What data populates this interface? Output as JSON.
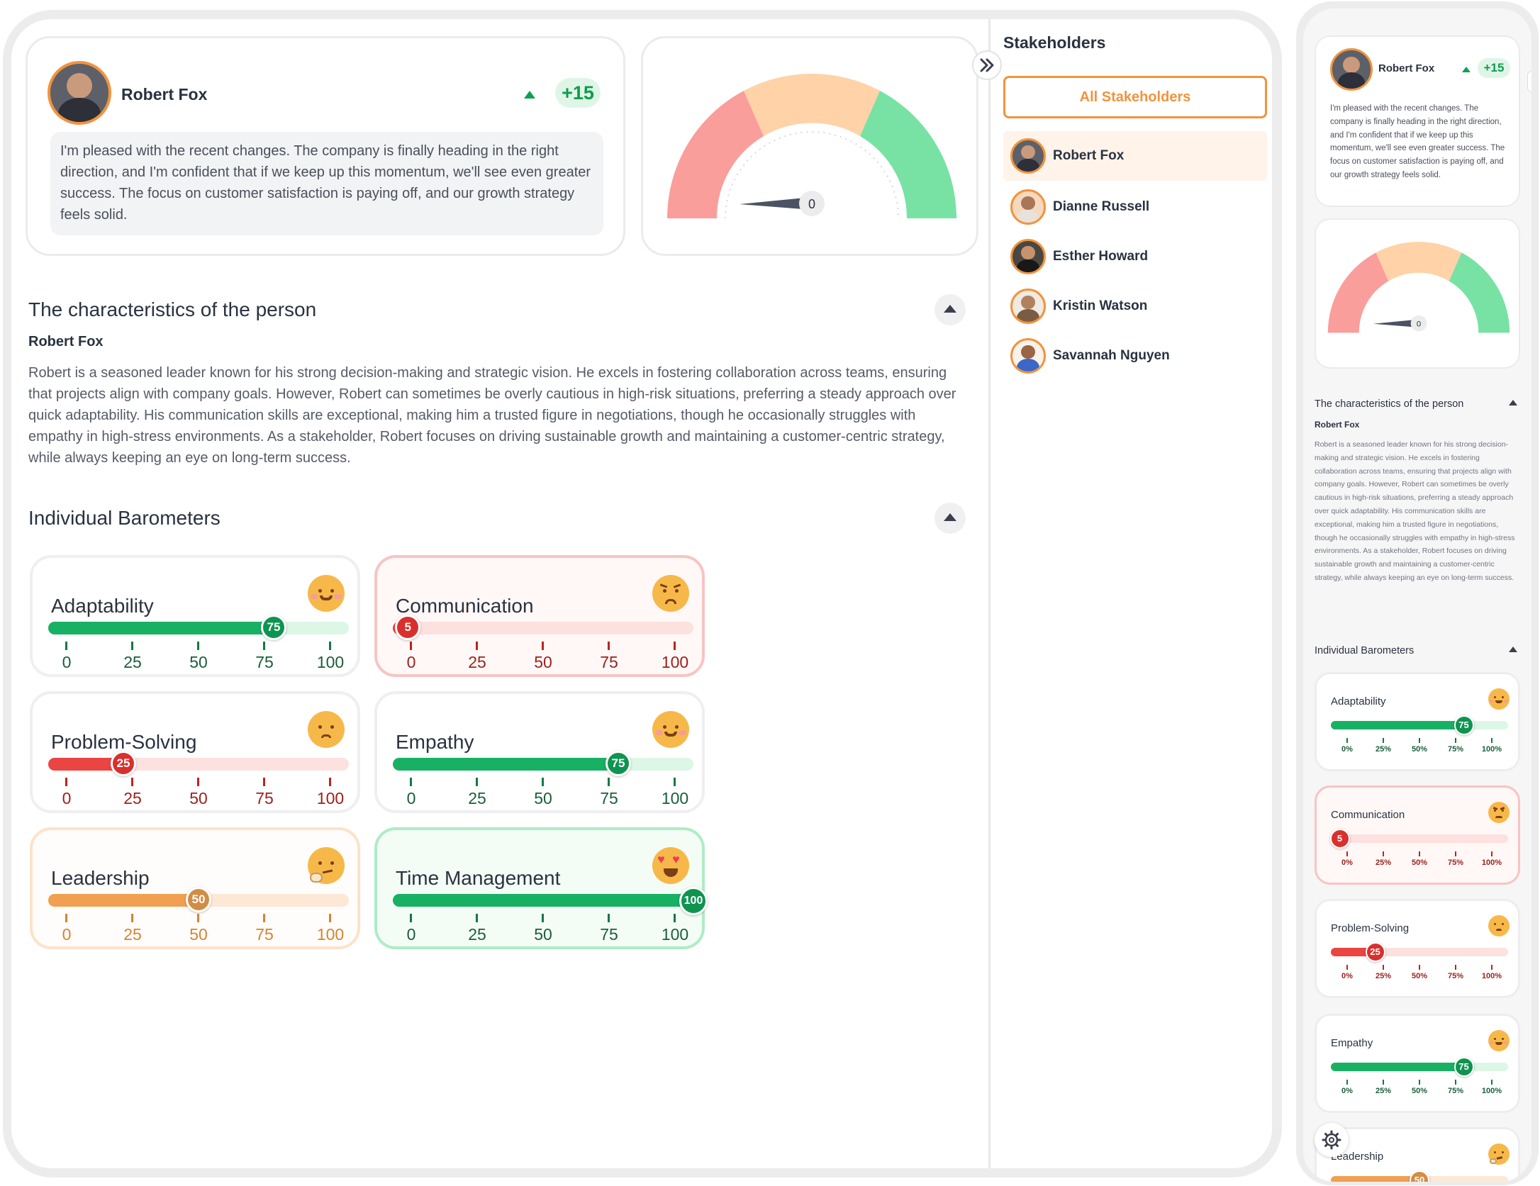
{
  "profile": {
    "name": "Robert Fox",
    "score_delta": "+15",
    "quote": "I'm pleased with the recent changes. The company is finally heading in the right direction, and I'm confident that if we keep up this momentum, we'll see even greater success. The focus on customer satisfaction is paying off, and our growth strategy feels solid.",
    "trend_icon": "triangle-up-icon"
  },
  "gauge": {
    "value": "0",
    "segments": [
      "#f99e9b",
      "#ffd2a8",
      "#78e2a5"
    ]
  },
  "characteristics": {
    "heading": "The characteristics of the person",
    "person": "Robert Fox",
    "description": "Robert is a seasoned leader known for his strong decision-making and strategic vision. He excels in fostering collaboration across teams, ensuring that projects align with company goals. However, Robert can sometimes be overly cautious in high-risk situations, preferring a steady approach over quick adaptability. His communication skills are exceptional, making him a trusted figure in negotiations, though he occasionally struggles with empathy in high-stress environments. As a stakeholder, Robert focuses on driving sustainable growth and maintaining a customer-centric strategy, while always keeping an eye on long-term success."
  },
  "barometers": {
    "heading": "Individual Barometers",
    "ticks": [
      "0",
      "25",
      "50",
      "75",
      "100"
    ],
    "ticks_pct": [
      "0%",
      "25%",
      "50%",
      "75%",
      "100%"
    ],
    "items": [
      {
        "label": "Adaptability",
        "value": 75,
        "value_text": "75",
        "mood": "smiling-face-icon",
        "tone": "green"
      },
      {
        "label": "Communication",
        "value": 5,
        "value_text": "5",
        "mood": "angry-face-icon",
        "tone": "red"
      },
      {
        "label": "Problem-Solving",
        "value": 25,
        "value_text": "25",
        "mood": "sad-face-icon",
        "tone": "red"
      },
      {
        "label": "Empathy",
        "value": 75,
        "value_text": "75",
        "mood": "smiling-face-icon",
        "tone": "green"
      },
      {
        "label": "Leadership",
        "value": 50,
        "value_text": "50",
        "mood": "thinking-face-icon",
        "tone": "orange"
      },
      {
        "label": "Time Management",
        "value": 100,
        "value_text": "100",
        "mood": "heart-eyes-face-icon",
        "tone": "green"
      }
    ]
  },
  "stakeholders": {
    "heading": "Stakeholders",
    "all_button": "All Stakeholders",
    "list": [
      "Robert Fox",
      "Dianne Russell",
      "Esther Howard",
      "Kristin Watson",
      "Savannah Nguyen"
    ]
  },
  "colors": {
    "accent": "#f2933d",
    "green": "#18b164",
    "red": "#e8423f",
    "orange": "#f0a050"
  }
}
